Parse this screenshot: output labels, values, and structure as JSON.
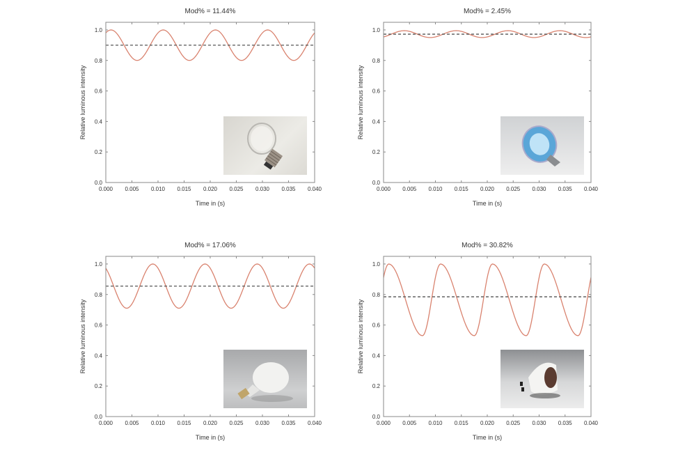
{
  "chart_data": [
    {
      "type": "line",
      "title": "Mod% = 11.44%",
      "xlabel": "Time in (s)",
      "ylabel": "Relative luminous intensity",
      "xlim": [
        0,
        0.04
      ],
      "ylim": [
        0,
        1.05
      ],
      "xticks": [
        "0.000",
        "0.005",
        "0.010",
        "0.015",
        "0.020",
        "0.025",
        "0.030",
        "0.035",
        "0.040"
      ],
      "yticks": [
        "0.0",
        "0.2",
        "0.4",
        "0.6",
        "0.8",
        "1.0"
      ],
      "mean": 0.9,
      "extrema": [
        [
          -0.004,
          0.8
        ],
        [
          0.001,
          1.0
        ],
        [
          0.006,
          0.8
        ],
        [
          0.011,
          1.0
        ],
        [
          0.016,
          0.8
        ],
        [
          0.021,
          1.0
        ],
        [
          0.026,
          0.8
        ],
        [
          0.031,
          1.0
        ],
        [
          0.036,
          0.8
        ],
        [
          0.041,
          1.0
        ]
      ],
      "inset": "incandescent-bulb-photo"
    },
    {
      "type": "line",
      "title": "Mod% = 2.45%",
      "xlabel": "Time in (s)",
      "ylabel": "Relative luminous intensity",
      "xlim": [
        0,
        0.04
      ],
      "ylim": [
        0,
        1.05
      ],
      "xticks": [
        "0.000",
        "0.005",
        "0.010",
        "0.015",
        "0.020",
        "0.025",
        "0.030",
        "0.035",
        "0.040"
      ],
      "yticks": [
        "0.0",
        "0.2",
        "0.4",
        "0.6",
        "0.8",
        "1.0"
      ],
      "mean": 0.972,
      "extrema": [
        [
          -0.001,
          0.95
        ],
        [
          0.004,
          0.995
        ],
        [
          0.009,
          0.95
        ],
        [
          0.014,
          0.995
        ],
        [
          0.019,
          0.95
        ],
        [
          0.024,
          0.995
        ],
        [
          0.029,
          0.95
        ],
        [
          0.034,
          0.995
        ],
        [
          0.039,
          0.95
        ],
        [
          0.044,
          0.995
        ]
      ],
      "inset": "halogen-reflector-photo"
    },
    {
      "type": "line",
      "title": "Mod% = 17.06%",
      "xlabel": "Time in (s)",
      "ylabel": "Relative luminous intensity",
      "xlim": [
        0,
        0.04
      ],
      "ylim": [
        0,
        1.05
      ],
      "xticks": [
        "0.000",
        "0.005",
        "0.010",
        "0.015",
        "0.020",
        "0.025",
        "0.030",
        "0.035",
        "0.040"
      ],
      "yticks": [
        "0.0",
        "0.2",
        "0.4",
        "0.6",
        "0.8",
        "1.0"
      ],
      "mean": 0.855,
      "extrema": [
        [
          -0.001,
          1.0
        ],
        [
          0.004,
          0.71
        ],
        [
          0.009,
          1.0
        ],
        [
          0.014,
          0.71
        ],
        [
          0.019,
          1.0
        ],
        [
          0.024,
          0.71
        ],
        [
          0.029,
          1.0
        ],
        [
          0.034,
          0.71
        ],
        [
          0.039,
          1.0
        ],
        [
          0.044,
          0.71
        ]
      ],
      "inset": "led-bulb-photo"
    },
    {
      "type": "line",
      "title": "Mod% = 30.82%",
      "xlabel": "Time in (s)",
      "ylabel": "Relative luminous intensity",
      "xlim": [
        0,
        0.04
      ],
      "ylim": [
        0,
        1.05
      ],
      "xticks": [
        "0.000",
        "0.005",
        "0.010",
        "0.015",
        "0.020",
        "0.025",
        "0.030",
        "0.035",
        "0.040"
      ],
      "yticks": [
        "0.0",
        "0.2",
        "0.4",
        "0.6",
        "0.8",
        "1.0"
      ],
      "mean": 0.785,
      "extrema": [
        [
          -0.0025,
          0.53
        ],
        [
          0.001,
          1.0
        ],
        [
          0.0075,
          0.53
        ],
        [
          0.011,
          1.0
        ],
        [
          0.0175,
          0.53
        ],
        [
          0.021,
          1.0
        ],
        [
          0.0275,
          0.53
        ],
        [
          0.031,
          1.0
        ],
        [
          0.0375,
          0.53
        ],
        [
          0.041,
          1.0
        ]
      ],
      "inset": "led-spot-gu10-photo"
    }
  ],
  "colors": {
    "curve": "#d9826e",
    "mean": "#555555",
    "axis": "#888888"
  }
}
